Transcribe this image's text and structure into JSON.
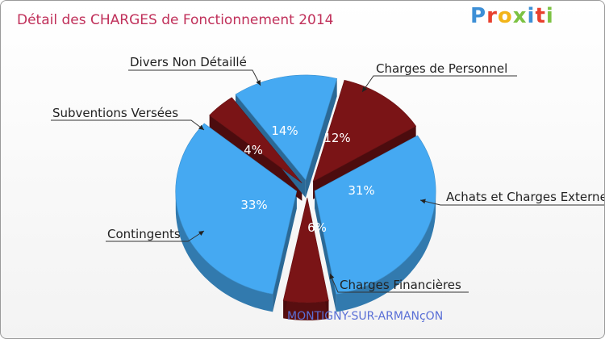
{
  "title": "Détail des CHARGES de Fonctionnement 2014",
  "logo": {
    "text": "Proxiti",
    "letters": [
      "P",
      "r",
      "o",
      "x",
      "i",
      "t",
      "i"
    ]
  },
  "commune": "MONTIGNY-SUR-ARMANçON",
  "chart_data": {
    "type": "pie",
    "title": "Détail des CHARGES de Fonctionnement 2014",
    "subtitle": "MONTIGNY-SUR-ARMANçON",
    "slices": [
      {
        "label": "Charges de Personnel",
        "pct_label": "12%",
        "value": 12,
        "color": "#7a1416"
      },
      {
        "label": "Achats et Charges Externes",
        "pct_label": "31%",
        "value": 31,
        "color": "#45a9f2"
      },
      {
        "label": "Charges Financières",
        "pct_label": "6%",
        "value": 6,
        "color": "#7a1416"
      },
      {
        "label": "Contingents",
        "pct_label": "33%",
        "value": 33,
        "color": "#45a9f2"
      },
      {
        "label": "Subventions Versées",
        "pct_label": "4%",
        "value": 4,
        "color": "#7a1416"
      },
      {
        "label": "Divers Non Détaillé",
        "pct_label": "14%",
        "value": 14,
        "color": "#45a9f2"
      }
    ]
  }
}
